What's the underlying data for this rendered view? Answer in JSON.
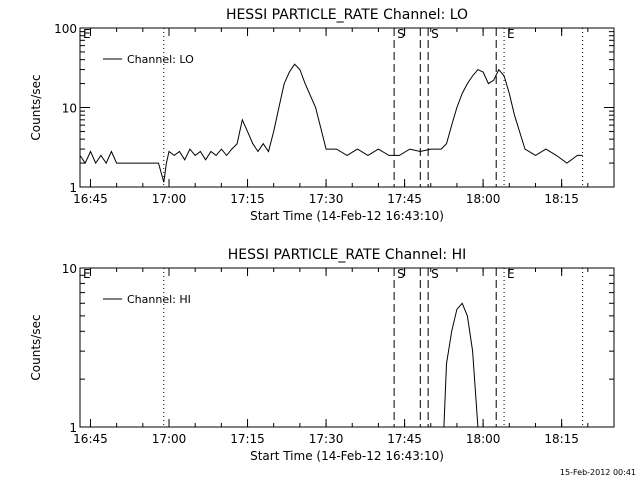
{
  "figure_timestamp": "15-Feb-2012 00:41",
  "chart_data": [
    {
      "type": "line",
      "title": "HESSI PARTICLE_RATE Channel: LO",
      "xlabel": "Start Time (14-Feb-12 16:43:10)",
      "ylabel": "Counts/sec",
      "yscale": "log",
      "ylim": [
        1,
        100
      ],
      "xlim": [
        "16:43",
        "18:25"
      ],
      "yticks": [
        "1",
        "10",
        "100"
      ],
      "xticks": [
        "16:45",
        "17:00",
        "17:15",
        "17:30",
        "17:45",
        "18:00",
        "18:15"
      ],
      "legend": {
        "label": "Channel: LO",
        "position": "top-left"
      },
      "markers": [
        {
          "label": "E",
          "time": "16:43",
          "style": "dotted"
        },
        {
          "label": "",
          "time": "16:59",
          "style": "dotted"
        },
        {
          "label": "S",
          "time": "17:43",
          "style": "dashed"
        },
        {
          "label": "",
          "time": "17:48",
          "style": "dashed"
        },
        {
          "label": "S",
          "time": "17:49.5",
          "style": "dashed"
        },
        {
          "label": "",
          "time": "18:02.5",
          "style": "dashed"
        },
        {
          "label": "E",
          "time": "18:04",
          "style": "dotted"
        },
        {
          "label": "",
          "time": "18:19",
          "style": "dotted"
        }
      ],
      "series": [
        {
          "x": [
            "16:43",
            "16:44",
            "16:45",
            "16:46",
            "16:47",
            "16:48",
            "16:49",
            "16:50",
            "16:52",
            "16:54",
            "16:56",
            "16:58",
            "16:59",
            "16:59.5",
            "17:00",
            "17:01",
            "17:02",
            "17:03",
            "17:04",
            "17:05",
            "17:06",
            "17:07",
            "17:08",
            "17:09",
            "17:10",
            "17:11",
            "17:12",
            "17:13",
            "17:14",
            "17:15",
            "17:16",
            "17:17",
            "17:18",
            "17:19",
            "17:20",
            "17:21",
            "17:22",
            "17:23",
            "17:24",
            "17:25",
            "17:26",
            "17:28",
            "17:30",
            "17:32",
            "17:34",
            "17:36",
            "17:38",
            "17:40",
            "17:42",
            "17:44",
            "17:46",
            "17:48",
            "17:50",
            "17:51",
            "17:52",
            "17:53",
            "17:54",
            "17:55",
            "17:56",
            "17:57",
            "17:58",
            "17:59",
            "18:00",
            "18:01",
            "18:02",
            "18:03",
            "18:04",
            "18:05",
            "18:06",
            "18:08",
            "18:10",
            "18:12",
            "18:14",
            "18:16",
            "18:18",
            "18:19"
          ],
          "y": [
            2.5,
            2,
            2.8,
            2,
            2.5,
            2,
            2.8,
            2,
            2,
            2,
            2,
            2,
            1.15,
            2,
            2.8,
            2.5,
            2.8,
            2.2,
            3,
            2.5,
            2.8,
            2.2,
            2.8,
            2.5,
            3,
            2.5,
            3,
            3.5,
            7,
            5,
            3.5,
            2.8,
            3.5,
            2.8,
            5,
            10,
            20,
            28,
            35,
            30,
            20,
            10,
            3,
            3,
            2.5,
            3,
            2.5,
            3,
            2.5,
            2.5,
            3,
            2.8,
            3,
            3,
            3,
            3.5,
            6,
            10,
            15,
            20,
            25,
            30,
            28,
            20,
            22,
            30,
            25,
            15,
            8,
            3,
            2.5,
            3,
            2.5,
            2,
            2.5,
            2.5
          ]
        }
      ]
    },
    {
      "type": "line",
      "title": "HESSI PARTICLE_RATE Channel: HI",
      "xlabel": "Start Time (14-Feb-12 16:43:10)",
      "ylabel": "Counts/sec",
      "yscale": "log",
      "ylim": [
        1,
        10
      ],
      "xlim": [
        "16:43",
        "18:25"
      ],
      "yticks": [
        "1",
        "10"
      ],
      "xticks": [
        "16:45",
        "17:00",
        "17:15",
        "17:30",
        "17:45",
        "18:00",
        "18:15"
      ],
      "legend": {
        "label": "Channel: HI",
        "position": "top-left"
      },
      "markers": [
        {
          "label": "E",
          "time": "16:43",
          "style": "dotted"
        },
        {
          "label": "",
          "time": "16:59",
          "style": "dotted"
        },
        {
          "label": "S",
          "time": "17:43",
          "style": "dashed"
        },
        {
          "label": "",
          "time": "17:48",
          "style": "dashed"
        },
        {
          "label": "S",
          "time": "17:49.5",
          "style": "dashed"
        },
        {
          "label": "",
          "time": "18:02.5",
          "style": "dashed"
        },
        {
          "label": "E",
          "time": "18:04",
          "style": "dotted"
        },
        {
          "label": "",
          "time": "18:19",
          "style": "dotted"
        }
      ],
      "series": [
        {
          "x": [
            "17:52.5",
            "17:53",
            "17:54",
            "17:55",
            "17:56",
            "17:57",
            "17:58",
            "17:59"
          ],
          "y": [
            1,
            2.5,
            4,
            5.5,
            6,
            5,
            3,
            1
          ]
        }
      ]
    }
  ]
}
